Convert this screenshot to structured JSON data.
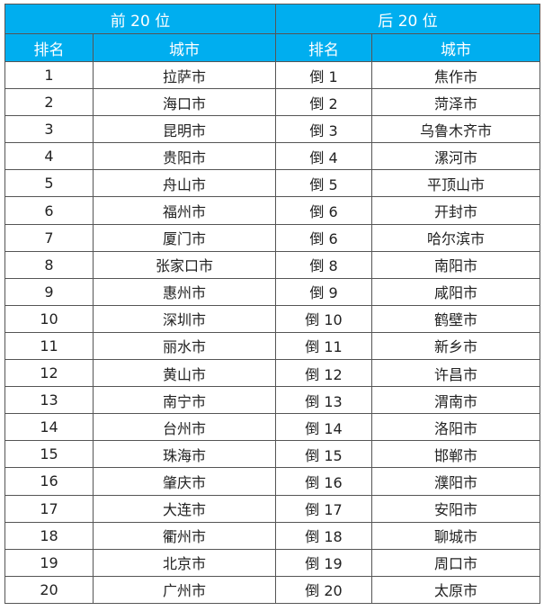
{
  "header": {
    "group_top": "前 20 位",
    "group_bottom": "后 20 位",
    "rank_label": "排名",
    "city_label": "城市"
  },
  "colors": {
    "header_bg": "#00aeef",
    "header_text": "#ffffff"
  },
  "rows": [
    {
      "rank": "1",
      "city": "拉萨市",
      "rev_rank": "倒 1",
      "rev_city": "焦作市"
    },
    {
      "rank": "2",
      "city": "海口市",
      "rev_rank": "倒 2",
      "rev_city": "菏泽市"
    },
    {
      "rank": "3",
      "city": "昆明市",
      "rev_rank": "倒 3",
      "rev_city": "乌鲁木齐市"
    },
    {
      "rank": "4",
      "city": "贵阳市",
      "rev_rank": "倒 4",
      "rev_city": "漯河市"
    },
    {
      "rank": "5",
      "city": "舟山市",
      "rev_rank": "倒 5",
      "rev_city": "平顶山市"
    },
    {
      "rank": "6",
      "city": "福州市",
      "rev_rank": "倒 6",
      "rev_city": "开封市"
    },
    {
      "rank": "7",
      "city": "厦门市",
      "rev_rank": "倒 6",
      "rev_city": "哈尔滨市"
    },
    {
      "rank": "8",
      "city": "张家口市",
      "rev_rank": "倒 8",
      "rev_city": "南阳市"
    },
    {
      "rank": "9",
      "city": "惠州市",
      "rev_rank": "倒 9",
      "rev_city": "咸阳市"
    },
    {
      "rank": "10",
      "city": "深圳市",
      "rev_rank": "倒 10",
      "rev_city": "鹤壁市"
    },
    {
      "rank": "11",
      "city": "丽水市",
      "rev_rank": "倒 11",
      "rev_city": "新乡市"
    },
    {
      "rank": "12",
      "city": "黄山市",
      "rev_rank": "倒 12",
      "rev_city": "许昌市"
    },
    {
      "rank": "13",
      "city": "南宁市",
      "rev_rank": "倒 13",
      "rev_city": "渭南市"
    },
    {
      "rank": "14",
      "city": "台州市",
      "rev_rank": "倒 14",
      "rev_city": "洛阳市"
    },
    {
      "rank": "15",
      "city": "珠海市",
      "rev_rank": "倒 15",
      "rev_city": "邯郸市"
    },
    {
      "rank": "16",
      "city": "肇庆市",
      "rev_rank": "倒 16",
      "rev_city": "濮阳市"
    },
    {
      "rank": "17",
      "city": "大连市",
      "rev_rank": "倒 17",
      "rev_city": "安阳市"
    },
    {
      "rank": "18",
      "city": "衢州市",
      "rev_rank": "倒 18",
      "rev_city": "聊城市"
    },
    {
      "rank": "19",
      "city": "北京市",
      "rev_rank": "倒 19",
      "rev_city": "周口市"
    },
    {
      "rank": "20",
      "city": "广州市",
      "rev_rank": "倒 20",
      "rev_city": "太原市"
    }
  ]
}
